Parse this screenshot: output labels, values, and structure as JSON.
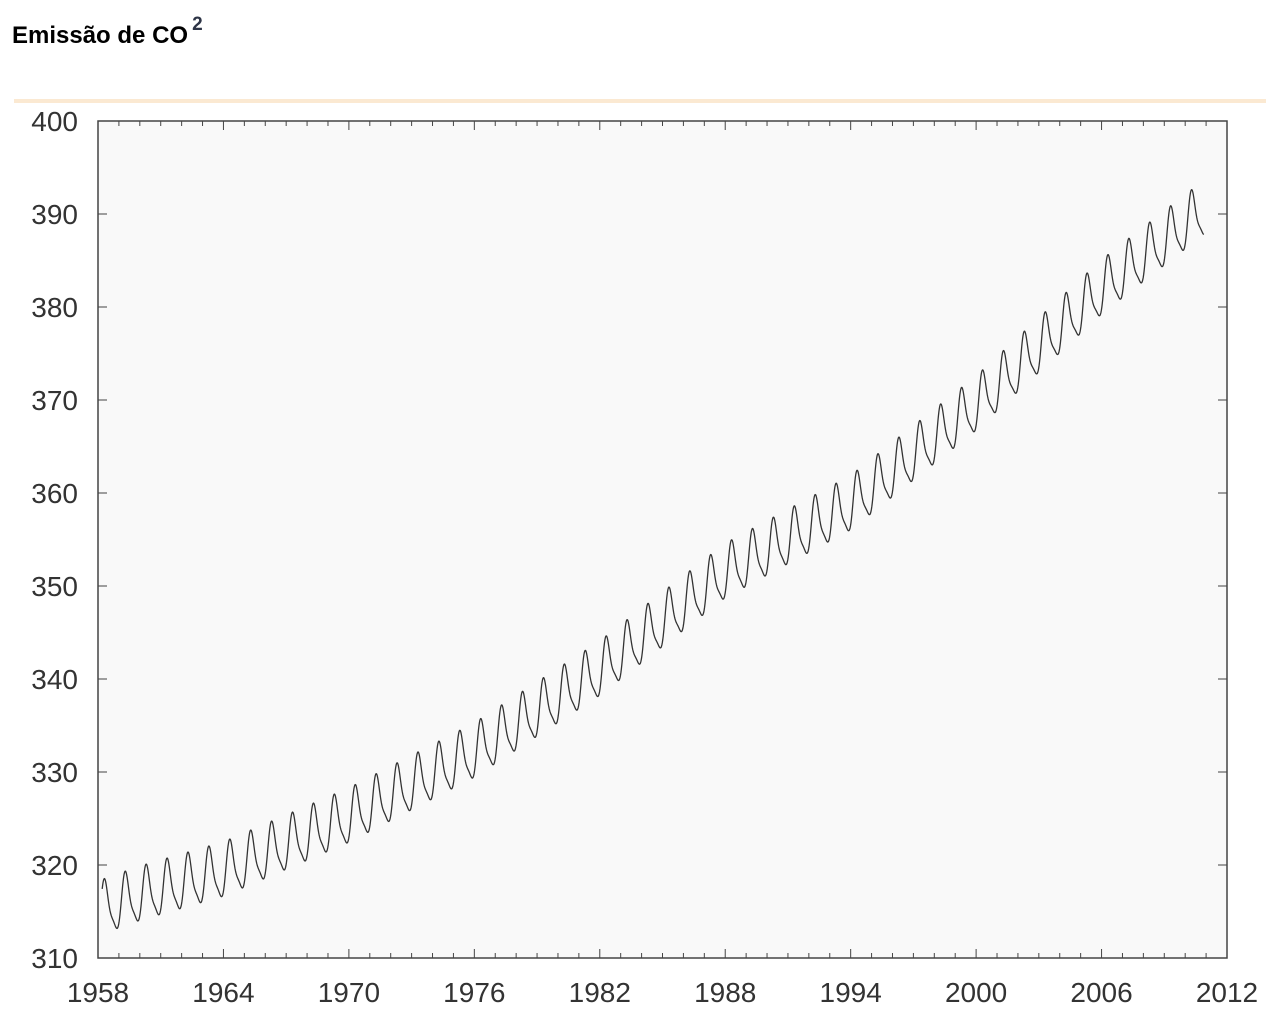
{
  "header": {
    "title_main": "Emissão de CO",
    "title_sup": "2"
  },
  "colors": {
    "plot_background": "#f9f9f9",
    "line": "#333333",
    "axis": "#444444",
    "tick_label": "#333333",
    "separator": "#fbe9d2"
  },
  "chart_data": {
    "type": "line",
    "title": "Emissão de CO2",
    "xlabel": "",
    "ylabel": "",
    "xlim": [
      1958,
      2012
    ],
    "ylim": [
      310,
      400
    ],
    "x_ticks": [
      1958,
      1964,
      1970,
      1976,
      1982,
      1988,
      1994,
      2000,
      2006,
      2012
    ],
    "x_tick_labels": [
      "1958",
      "1964",
      "1970",
      "1976",
      "1982",
      "1988",
      "1994",
      "2000",
      "2006",
      "2012"
    ],
    "y_ticks": [
      310,
      320,
      330,
      340,
      350,
      360,
      370,
      380,
      390,
      400
    ],
    "y_tick_labels": [
      "310",
      "320",
      "330",
      "340",
      "350",
      "360",
      "370",
      "380",
      "390",
      "400"
    ],
    "grid": false,
    "legend": "none",
    "series": [
      {
        "x_range": [
          1958.2,
          2010.9
        ],
        "samples_per_year": 12,
        "seasonal_amplitude": 3.0,
        "seasonal_peak_month": 5,
        "trend_anchors": [
          [
            1958,
            315.0
          ],
          [
            1960,
            316.6
          ],
          [
            1964,
            319.2
          ],
          [
            1970,
            325.0
          ],
          [
            1976,
            332.0
          ],
          [
            1982,
            340.8
          ],
          [
            1988,
            351.3
          ],
          [
            1994,
            358.6
          ],
          [
            2000,
            369.3
          ],
          [
            2006,
            381.8
          ],
          [
            2010,
            388.8
          ],
          [
            2011,
            390.5
          ]
        ]
      }
    ]
  }
}
